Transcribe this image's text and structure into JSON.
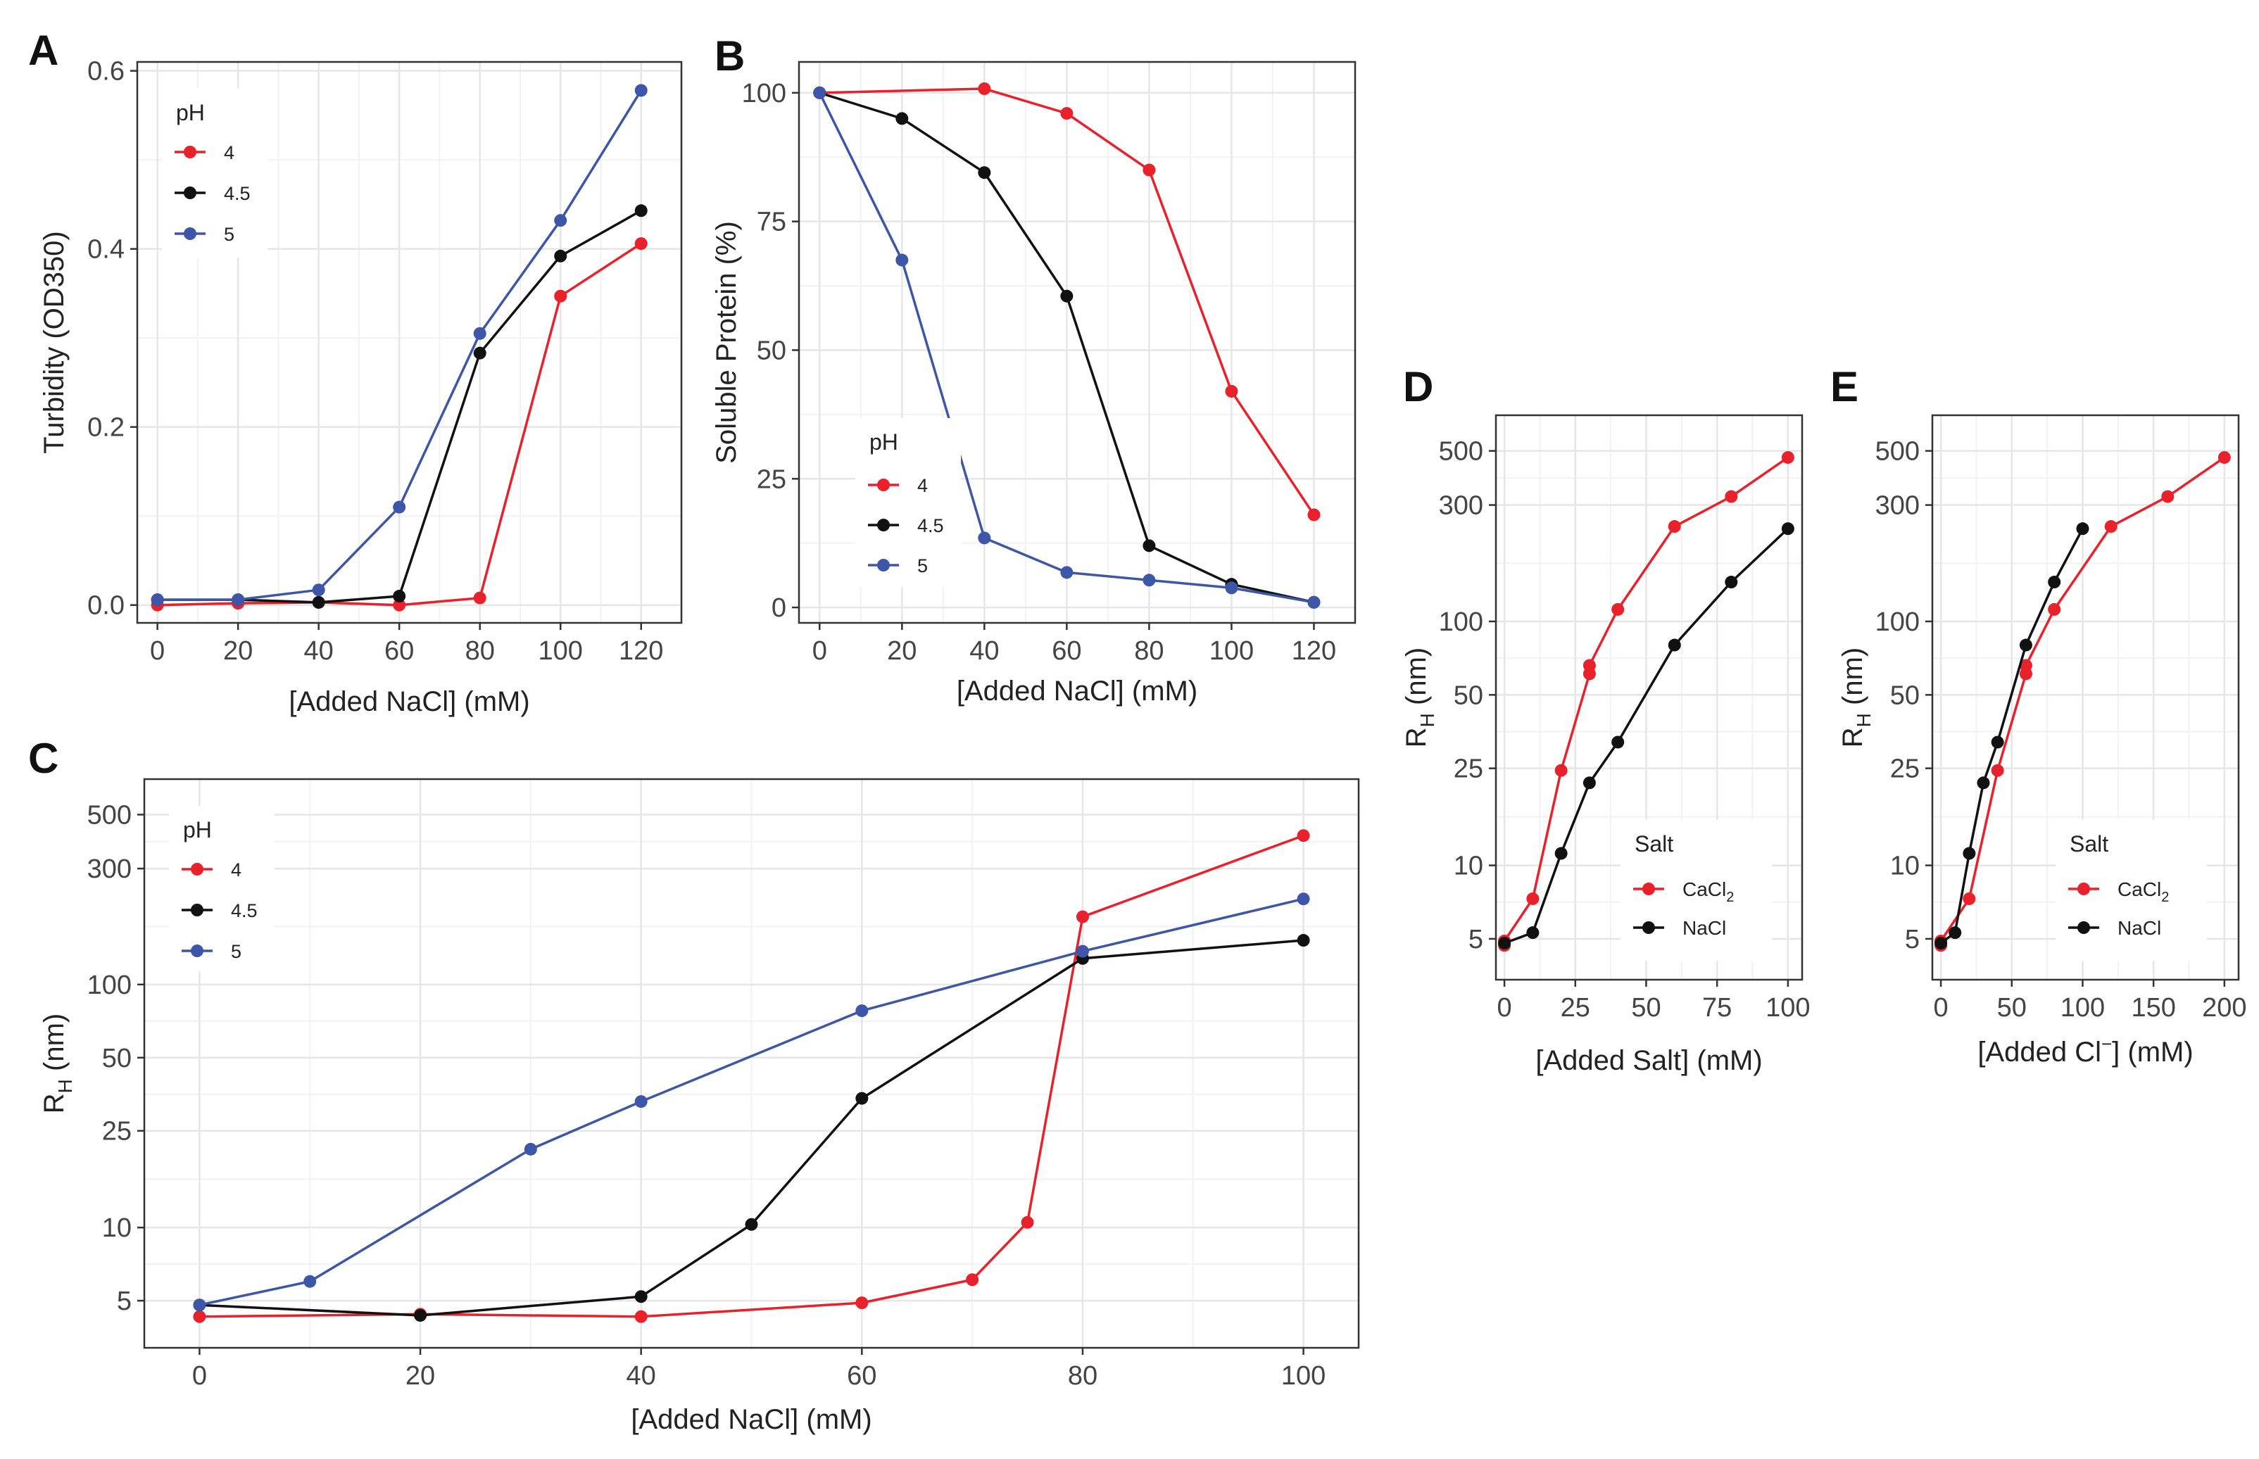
{
  "figure": {
    "colors": {
      "pH4": "#e8212b",
      "pH4.5": "#111111",
      "pH5": "#3d56a8",
      "CaCl2": "#e8212b",
      "NaCl": "#111111"
    }
  },
  "chart_data": [
    {
      "id": "A",
      "type": "line",
      "panel_label": "A",
      "xlabel": "[Added NaCl] (mM)",
      "ylabel": "Turbidity (OD350)",
      "xlim": [
        -5,
        130
      ],
      "ylim": [
        -0.02,
        0.61
      ],
      "yscale": "linear",
      "xticks": [
        0,
        20,
        40,
        60,
        80,
        100,
        120
      ],
      "xtick_labels": [
        "0",
        "20",
        "40",
        "60",
        "80",
        "100",
        "120"
      ],
      "yticks": [
        0,
        0.2,
        0.4,
        0.6
      ],
      "ytick_labels": [
        "0.0",
        "0.2",
        "0.4",
        "0.6"
      ],
      "grid": true,
      "legend_title": "pH",
      "legend_position": "top-left",
      "series": [
        {
          "name": "4",
          "color": "#e8212b",
          "x": [
            0,
            20,
            40,
            60,
            80,
            100,
            120
          ],
          "y": [
            0.0,
            0.002,
            0.003,
            0.0,
            0.008,
            0.347,
            0.406
          ]
        },
        {
          "name": "4.5",
          "color": "#111111",
          "x": [
            0,
            20,
            40,
            60,
            80,
            100,
            120
          ],
          "y": [
            0.006,
            0.006,
            0.003,
            0.01,
            0.283,
            0.392,
            0.443
          ]
        },
        {
          "name": "5",
          "color": "#3d56a8",
          "x": [
            0,
            20,
            40,
            60,
            80,
            100,
            120
          ],
          "y": [
            0.006,
            0.006,
            0.017,
            0.11,
            0.305,
            0.432,
            0.578
          ]
        }
      ]
    },
    {
      "id": "B",
      "type": "line",
      "panel_label": "B",
      "xlabel": "[Added NaCl] (mM)",
      "ylabel": "Soluble Protein (%)",
      "xlim": [
        -5,
        130
      ],
      "ylim": [
        -3,
        106
      ],
      "yscale": "linear",
      "xticks": [
        0,
        20,
        40,
        60,
        80,
        100,
        120
      ],
      "xtick_labels": [
        "0",
        "20",
        "40",
        "60",
        "80",
        "100",
        "120"
      ],
      "yticks": [
        0,
        25,
        50,
        75,
        100
      ],
      "ytick_labels": [
        "0",
        "25",
        "50",
        "75",
        "100"
      ],
      "grid": true,
      "legend_title": "pH",
      "legend_position": "bottom-left",
      "series": [
        {
          "name": "4",
          "color": "#e8212b",
          "x": [
            0,
            40,
            60,
            80,
            100,
            120
          ],
          "y": [
            100,
            100.8,
            96,
            85,
            42,
            18
          ]
        },
        {
          "name": "4.5",
          "color": "#111111",
          "x": [
            0,
            20,
            40,
            60,
            80,
            100,
            120
          ],
          "y": [
            100,
            95,
            84.5,
            60.5,
            12,
            4.5,
            1
          ]
        },
        {
          "name": "5",
          "color": "#3d56a8",
          "x": [
            0,
            20,
            40,
            60,
            80,
            100,
            120
          ],
          "y": [
            100,
            67.5,
            13.5,
            6.8,
            5.3,
            3.8,
            1
          ]
        }
      ]
    },
    {
      "id": "C",
      "type": "line",
      "panel_label": "C",
      "xlabel": "[Added NaCl] (mM)",
      "ylabel": "RH (nm)",
      "ylabel_main": "R",
      "ylabel_sub": "H",
      "ylabel_suffix": " (nm)",
      "xlim": [
        -5,
        105
      ],
      "ylim": [
        3.2,
        700
      ],
      "yscale": "log",
      "xticks": [
        0,
        20,
        40,
        60,
        80,
        100
      ],
      "xtick_labels": [
        "0",
        "20",
        "40",
        "60",
        "80",
        "100"
      ],
      "yticks": [
        5,
        10,
        25,
        50,
        100,
        300,
        500
      ],
      "ytick_labels": [
        "5",
        "10",
        "25",
        "50",
        "100",
        "300",
        "500"
      ],
      "grid": true,
      "legend_title": "pH",
      "legend_position": "top-left",
      "series": [
        {
          "name": "4",
          "color": "#e8212b",
          "x": [
            0,
            20,
            40,
            60,
            70,
            75,
            80,
            100
          ],
          "y": [
            4.3,
            4.4,
            4.3,
            4.9,
            6.1,
            10.5,
            190,
            410
          ]
        },
        {
          "name": "4.5",
          "color": "#111111",
          "x": [
            0,
            20,
            40,
            50,
            60,
            80,
            100
          ],
          "y": [
            4.8,
            4.35,
            5.2,
            10.3,
            34,
            128,
            152
          ]
        },
        {
          "name": "5",
          "color": "#3d56a8",
          "x": [
            0,
            10,
            30,
            40,
            60,
            80,
            100
          ],
          "y": [
            4.8,
            6,
            21,
            33,
            78,
            137,
            225
          ]
        }
      ]
    },
    {
      "id": "D",
      "type": "line",
      "panel_label": "D",
      "xlabel": "[Added Salt] (mM)",
      "ylabel": "RH (nm)",
      "ylabel_main": "R",
      "ylabel_sub": "H",
      "ylabel_suffix": " (nm)",
      "xlim": [
        -3,
        105
      ],
      "ylim": [
        3.4,
        700
      ],
      "yscale": "log",
      "xticks": [
        0,
        25,
        50,
        75,
        100
      ],
      "xtick_labels": [
        "0",
        "25",
        "50",
        "75",
        "100"
      ],
      "yticks": [
        5,
        10,
        25,
        50,
        100,
        300,
        500
      ],
      "ytick_labels": [
        "5",
        "10",
        "25",
        "50",
        "100",
        "300",
        "500"
      ],
      "grid": true,
      "legend_title": "Salt",
      "legend_position": "bottom-right",
      "series": [
        {
          "name": "CaCl2",
          "label_main": "CaCl",
          "label_sub": "2",
          "color": "#e8212b",
          "x": [
            0,
            0,
            10,
            20,
            30,
            30,
            40,
            60,
            80,
            100
          ],
          "y": [
            4.7,
            4.9,
            7.3,
            24.5,
            61,
            66,
            112,
            245,
            325,
            470
          ]
        },
        {
          "name": "NaCl",
          "label_main": "NaCl",
          "label_sub": "",
          "color": "#111111",
          "x": [
            0,
            10,
            20,
            30,
            40,
            60,
            80,
            100
          ],
          "y": [
            4.8,
            5.3,
            11.2,
            21.8,
            32,
            80,
            145,
            240
          ]
        }
      ]
    },
    {
      "id": "E",
      "type": "line",
      "panel_label": "E",
      "xlabel": "[Added Cl⁻] (mM)",
      "xlabel_main": "[Added Cl",
      "xlabel_sup": "−",
      "xlabel_suffix": "] (mM)",
      "ylabel": "RH (nm)",
      "ylabel_main": "R",
      "ylabel_sub": "H",
      "ylabel_suffix": " (nm)",
      "xlim": [
        -6,
        210
      ],
      "ylim": [
        3.4,
        700
      ],
      "yscale": "log",
      "xticks": [
        0,
        50,
        100,
        150,
        200
      ],
      "xtick_labels": [
        "0",
        "50",
        "100",
        "150",
        "200"
      ],
      "yticks": [
        5,
        10,
        25,
        50,
        100,
        300,
        500
      ],
      "ytick_labels": [
        "5",
        "10",
        "25",
        "50",
        "100",
        "300",
        "500"
      ],
      "grid": true,
      "legend_title": "Salt",
      "legend_position": "bottom-right",
      "series": [
        {
          "name": "CaCl2",
          "label_main": "CaCl",
          "label_sub": "2",
          "color": "#e8212b",
          "x": [
            0,
            0,
            20,
            40,
            60,
            60,
            80,
            120,
            160,
            200
          ],
          "y": [
            4.7,
            4.9,
            7.3,
            24.5,
            61,
            66,
            112,
            245,
            325,
            470
          ]
        },
        {
          "name": "NaCl",
          "label_main": "NaCl",
          "label_sub": "",
          "color": "#111111",
          "x": [
            0,
            10,
            20,
            30,
            40,
            60,
            80,
            100
          ],
          "y": [
            4.8,
            5.3,
            11.2,
            21.8,
            32,
            80,
            145,
            240
          ]
        }
      ]
    }
  ]
}
